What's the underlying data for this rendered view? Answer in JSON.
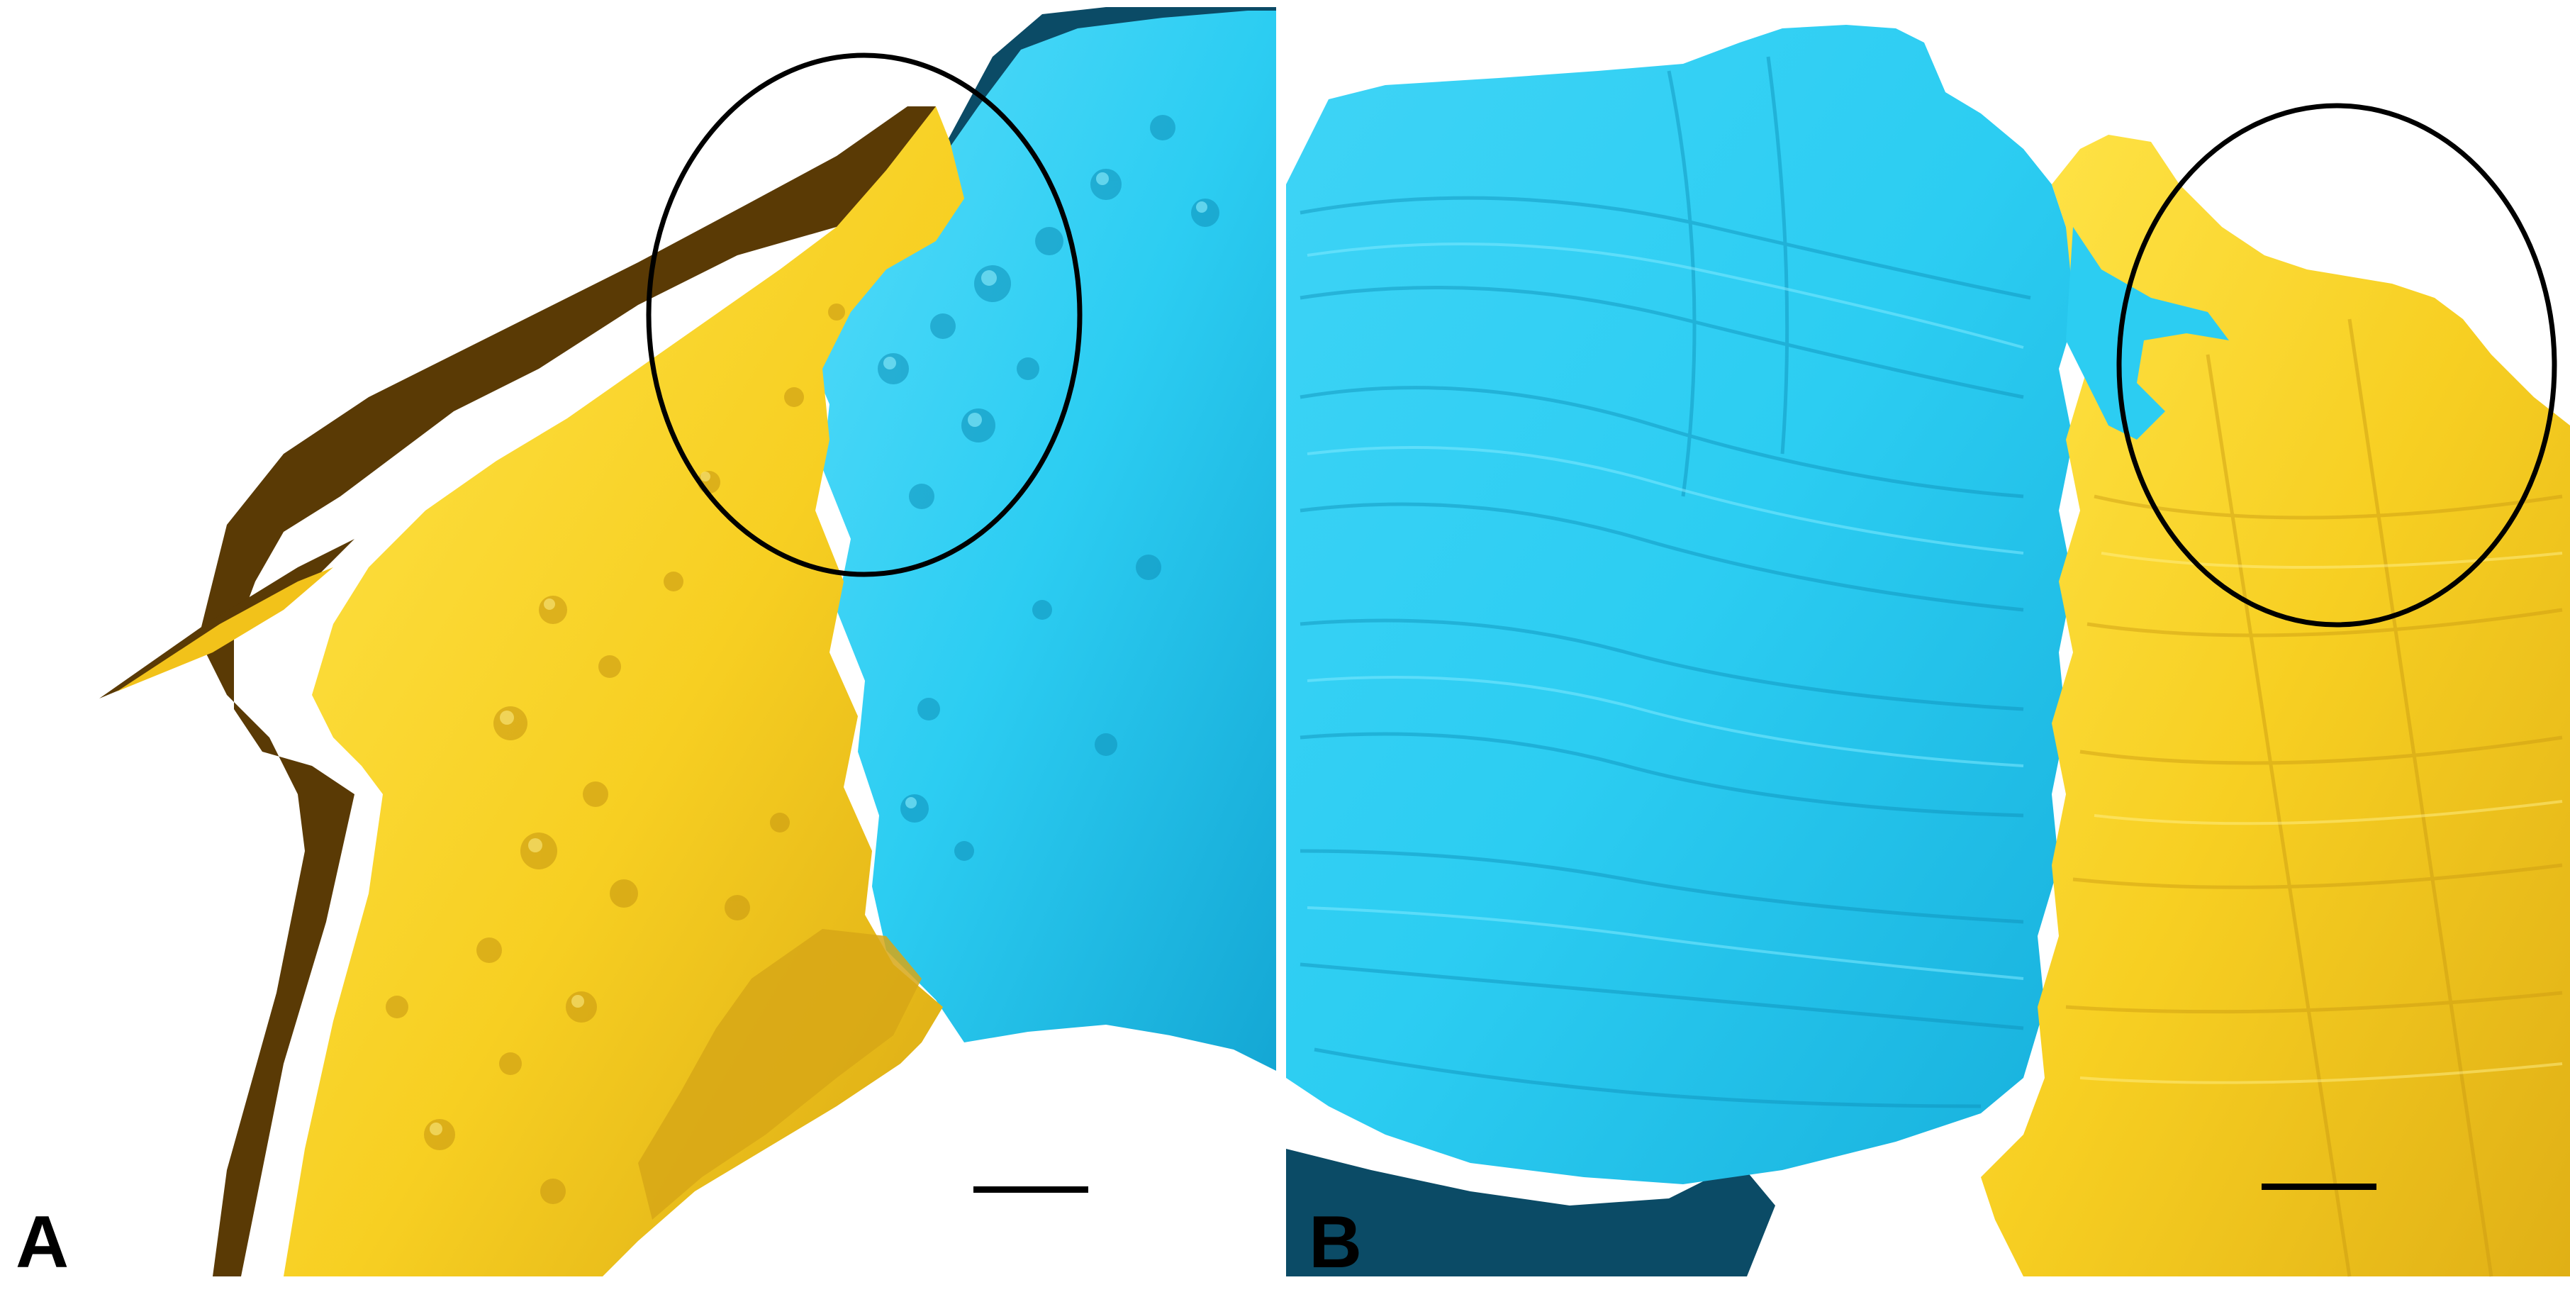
{
  "figure": {
    "panels": [
      {
        "label": "A",
        "structures": [
          "gold-surface",
          "dark-brown-surface",
          "cyan-surface"
        ],
        "annotation": "black-ellipse",
        "has_scale_bar": true
      },
      {
        "label": "B",
        "structures": [
          "cyan-surface",
          "gold-surface",
          "dark-blue-surface"
        ],
        "annotation": "black-ellipse",
        "has_scale_bar": true
      }
    ],
    "colors": {
      "background": "#ffffff",
      "gold": "#f2c21a",
      "gold_light": "#ffe54a",
      "gold_dark": "#c99a12",
      "brown": "#5a3a05",
      "cyan": "#25c8ef",
      "cyan_light": "#56dcfa",
      "cyan_dark": "#0e8fb8",
      "navy": "#0b4b66",
      "outline": "#000000"
    }
  }
}
